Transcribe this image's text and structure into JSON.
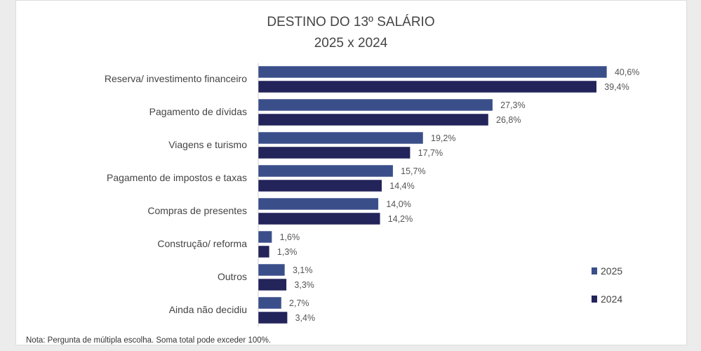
{
  "chart_data": {
    "type": "bar",
    "orientation": "horizontal",
    "title": "DESTINO DO 13º SALÁRIO",
    "subtitle": "2025 x 2024",
    "categories": [
      "Reserva/ investimento financeiro",
      "Pagamento de dívidas",
      "Viagens e turismo",
      "Pagamento de impostos e taxas",
      "Compras de presentes",
      "Construção/ reforma",
      "Outros",
      "Ainda não decidiu"
    ],
    "series": [
      {
        "name": "2025",
        "color": "#3a4f8a",
        "values": [
          40.6,
          27.3,
          19.2,
          15.7,
          14.0,
          1.6,
          3.1,
          2.7
        ],
        "labels": [
          "40,6%",
          "27,3%",
          "19,2%",
          "15,7%",
          "14,0%",
          "1,6%",
          "3,1%",
          "2,7%"
        ]
      },
      {
        "name": "2024",
        "color": "#22245a",
        "values": [
          39.4,
          26.8,
          17.7,
          14.4,
          14.2,
          1.3,
          3.3,
          3.4
        ],
        "labels": [
          "39,4%",
          "26,8%",
          "17,7%",
          "14,4%",
          "14,2%",
          "1,3%",
          "3,3%",
          "3,4%"
        ]
      }
    ],
    "legend": "right",
    "grid": false,
    "xlim": [
      0,
      42
    ],
    "note": "Nota: Pergunta de múltipla escolha. Soma total pode exceder 100%."
  }
}
